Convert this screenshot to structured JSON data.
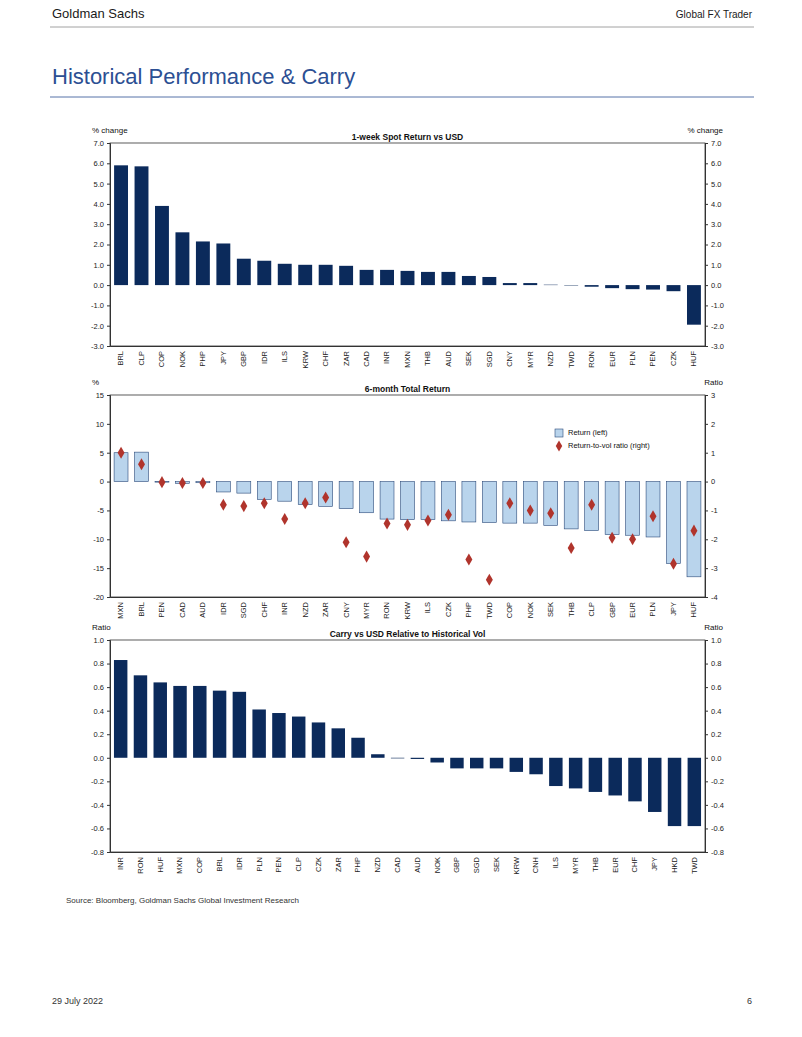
{
  "page": {
    "header_left": "Goldman Sachs",
    "header_right": "Global FX Trader",
    "title": "Historical Performance & Carry",
    "source": "Source: Bloomberg, Goldman Sachs Global Investment Research",
    "date": "29 July 2022",
    "page_number": "6"
  },
  "chart_data": [
    {
      "type": "bar",
      "title": "1-week Spot Return vs USD",
      "y_label": "% change",
      "y2_label": "% change",
      "categories": [
        "BRL",
        "CLP",
        "COP",
        "NOK",
        "PHP",
        "JPY",
        "GBP",
        "IDR",
        "ILS",
        "KRW",
        "CHF",
        "ZAR",
        "CAD",
        "INR",
        "MXN",
        "THB",
        "AUD",
        "SEK",
        "SGD",
        "CNY",
        "MYR",
        "NZD",
        "TWD",
        "RON",
        "EUR",
        "PLN",
        "PEN",
        "CZK",
        "HUF"
      ],
      "values": [
        5.9,
        5.85,
        3.9,
        2.6,
        2.15,
        2.05,
        1.3,
        1.2,
        1.05,
        1.0,
        1.0,
        0.95,
        0.75,
        0.75,
        0.7,
        0.65,
        0.65,
        0.45,
        0.4,
        0.1,
        0.1,
        0.02,
        -0.02,
        -0.08,
        -0.15,
        -0.2,
        -0.22,
        -0.3,
        -1.95
      ],
      "color": "#0b2a5b",
      "ylim": [
        -3,
        7
      ],
      "yticks": [
        {
          "value": -3,
          "label": "-3.0"
        },
        {
          "value": -2,
          "label": "-2.0"
        },
        {
          "value": -1,
          "label": "-1.0"
        },
        {
          "value": 0,
          "label": "0.0"
        },
        {
          "value": 1,
          "label": "1.0"
        },
        {
          "value": 2,
          "label": "2.0"
        },
        {
          "value": 3,
          "label": "3.0"
        },
        {
          "value": 4,
          "label": "4.0"
        },
        {
          "value": 5,
          "label": "5.0"
        },
        {
          "value": 6,
          "label": "6.0"
        },
        {
          "value": 7,
          "label": "7.0"
        }
      ],
      "y2lim": [
        -3,
        7
      ],
      "y2ticks": [
        {
          "value": -3,
          "label": "-3.0"
        },
        {
          "value": -2,
          "label": "-2.0"
        },
        {
          "value": -1,
          "label": "-1.0"
        },
        {
          "value": 0,
          "label": "0.0"
        },
        {
          "value": 1,
          "label": "1.0"
        },
        {
          "value": 2,
          "label": "2.0"
        },
        {
          "value": 3,
          "label": "3.0"
        },
        {
          "value": 4,
          "label": "4.0"
        },
        {
          "value": 5,
          "label": "5.0"
        },
        {
          "value": 6,
          "label": "6.0"
        },
        {
          "value": 7,
          "label": "7.0"
        }
      ]
    },
    {
      "type": "bar",
      "title": "6-month Total Return",
      "y_label": "%",
      "y2_label": "Ratio",
      "legend": "top-right",
      "categories": [
        "MXN",
        "BRL",
        "PEN",
        "CAD",
        "AUD",
        "IDR",
        "SGD",
        "CHF",
        "INR",
        "NZD",
        "ZAR",
        "CNY",
        "MYR",
        "RON",
        "KRW",
        "ILS",
        "CZK",
        "PHP",
        "TWD",
        "COP",
        "NOK",
        "SEK",
        "THB",
        "CLP",
        "GBP",
        "EUR",
        "PLN",
        "JPY",
        "HUF"
      ],
      "series": [
        {
          "name": "Return (left)",
          "type": "bar",
          "color": "#b9d4ec",
          "values": [
            5.0,
            5.1,
            -0.1,
            -0.3,
            -0.2,
            -1.8,
            -2.0,
            -3.1,
            -3.4,
            -4.0,
            -4.3,
            -4.7,
            -5.4,
            -6.5,
            -6.6,
            -6.6,
            -6.8,
            -7.0,
            -7.1,
            -7.2,
            -7.2,
            -7.6,
            -8.2,
            -8.5,
            -9.2,
            -9.3,
            -9.6,
            -14.2,
            -16.5
          ]
        },
        {
          "name": "Return-to-vol ratio (right)",
          "type": "scatter",
          "marker": "diamond",
          "axis": "y2",
          "color": "#b0342c",
          "values": [
            1.0,
            0.6,
            -0.02,
            -0.05,
            -0.05,
            -0.8,
            -0.85,
            -0.75,
            -1.3,
            -0.75,
            -0.55,
            -2.1,
            -2.6,
            -1.45,
            -1.5,
            -1.35,
            -1.15,
            -2.7,
            -3.4,
            -0.75,
            -1.0,
            -1.1,
            -2.3,
            -0.8,
            -1.95,
            -2.0,
            -1.2,
            -2.85,
            -1.7
          ]
        }
      ],
      "ylim": [
        -20,
        15
      ],
      "yticks": [
        -20,
        -15,
        -10,
        -5,
        0,
        5,
        10,
        15
      ],
      "y2lim": [
        -4,
        3
      ],
      "y2ticks": [
        -4,
        -3,
        -2,
        -1,
        0,
        1,
        2,
        3
      ]
    },
    {
      "type": "bar",
      "title": "Carry vs USD Relative to Historical Vol",
      "y_label": "Ratio",
      "y2_label": "Ratio",
      "categories": [
        "INR",
        "RON",
        "HUF",
        "MXN",
        "COP",
        "BRL",
        "IDR",
        "PLN",
        "PEN",
        "CLP",
        "CZK",
        "ZAR",
        "PHP",
        "NZD",
        "CAD",
        "AUD",
        "NOK",
        "GBP",
        "SGD",
        "SEK",
        "KRW",
        "CNH",
        "ILS",
        "MYR",
        "THB",
        "EUR",
        "CHF",
        "JPY",
        "HKD",
        "TWD"
      ],
      "values": [
        0.83,
        0.7,
        0.64,
        0.61,
        0.61,
        0.57,
        0.56,
        0.41,
        0.38,
        0.35,
        0.3,
        0.25,
        0.17,
        0.03,
        -0.005,
        -0.01,
        -0.04,
        -0.09,
        -0.09,
        -0.09,
        -0.12,
        -0.14,
        -0.24,
        -0.26,
        -0.29,
        -0.32,
        -0.37,
        -0.46,
        -0.58,
        -0.58
      ],
      "color": "#0b2a5b",
      "ylim": [
        -0.8,
        1.0
      ],
      "yticks": [
        -0.8,
        -0.6,
        -0.4,
        -0.2,
        {
          "value": 0,
          "label": "0.0"
        },
        0.2,
        0.4,
        0.6,
        0.8,
        {
          "value": 1,
          "label": "1.0"
        }
      ],
      "y2lim": [
        -0.8,
        1.0
      ],
      "y2ticks": [
        -0.8,
        -0.6,
        -0.4,
        -0.2,
        {
          "value": 0,
          "label": "0.0"
        },
        0.2,
        0.4,
        0.6,
        0.8,
        {
          "value": 1,
          "label": "1.0"
        }
      ]
    }
  ]
}
